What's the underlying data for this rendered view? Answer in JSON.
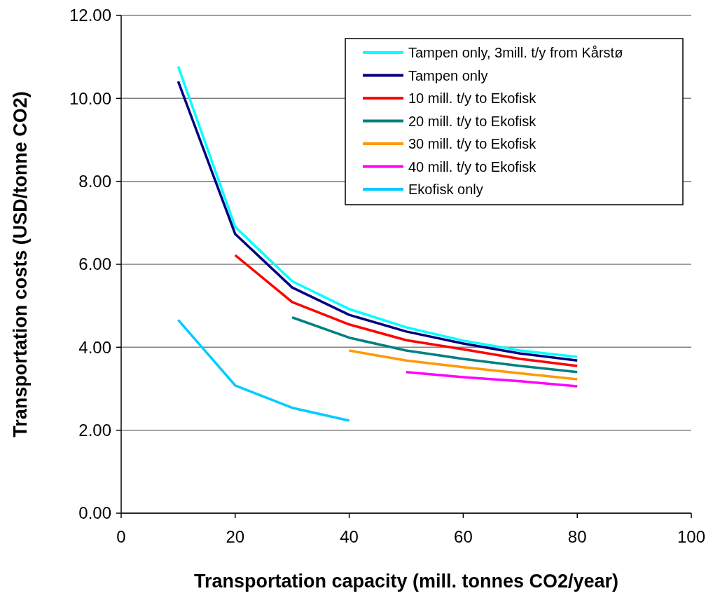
{
  "chart_data": {
    "type": "line",
    "xlabel": "Transportation capacity (mill. tonnes CO2/year)",
    "ylabel": "Transportation costs (USD/tonne CO2)",
    "xlim": [
      0,
      100
    ],
    "xticks": [
      0,
      20,
      40,
      60,
      80,
      100
    ],
    "ylim": [
      0,
      12
    ],
    "yticks": [
      {
        "value": 0,
        "label": "0.00"
      },
      {
        "value": 2,
        "label": "2.00"
      },
      {
        "value": 4,
        "label": "4.00"
      },
      {
        "value": 6,
        "label": "6.00"
      },
      {
        "value": 8,
        "label": "8.00"
      },
      {
        "value": 10,
        "label": "10.00"
      },
      {
        "value": 12,
        "label": "12.00"
      }
    ],
    "grid": "y",
    "legend": "top right",
    "marker": "none",
    "line_style": "solid",
    "series": [
      {
        "name": "Tampen only, 3mill. t/y from Kårstø",
        "color": "#00ffff",
        "x": [
          10,
          20,
          30,
          40,
          50,
          60,
          70,
          80
        ],
        "values": [
          10.77,
          6.9,
          5.59,
          4.92,
          4.48,
          4.16,
          3.92,
          3.77
        ]
      },
      {
        "name": "Tampen only",
        "color": "#000080",
        "x": [
          10,
          20,
          30,
          40,
          50,
          60,
          70,
          80
        ],
        "values": [
          10.41,
          6.73,
          5.44,
          4.78,
          4.38,
          4.09,
          3.85,
          3.68
        ]
      },
      {
        "name": "10 mill. t/y to Ekofisk",
        "color": "#ff0000",
        "x": [
          20,
          30,
          40,
          50,
          60,
          70,
          80
        ],
        "values": [
          6.22,
          5.09,
          4.55,
          4.17,
          3.95,
          3.72,
          3.55
        ]
      },
      {
        "name": "20 mill. t/y to Ekofisk",
        "color": "#008080",
        "x": [
          30,
          40,
          50,
          60,
          70,
          80
        ],
        "values": [
          4.72,
          4.23,
          3.92,
          3.72,
          3.55,
          3.4
        ]
      },
      {
        "name": "30 mill. t/y to Ekofisk",
        "color": "#ff9900",
        "x": [
          40,
          50,
          60,
          70,
          80
        ],
        "values": [
          3.92,
          3.68,
          3.52,
          3.37,
          3.23
        ]
      },
      {
        "name": "40 mill. t/y to Ekofisk",
        "color": "#ff00ff",
        "x": [
          50,
          60,
          70,
          80
        ],
        "values": [
          3.4,
          3.28,
          3.18,
          3.06
        ]
      },
      {
        "name": "Ekofisk only",
        "color": "#00ccff",
        "x": [
          10,
          20,
          30,
          40
        ],
        "values": [
          4.66,
          3.08,
          2.54,
          2.23
        ]
      }
    ]
  }
}
